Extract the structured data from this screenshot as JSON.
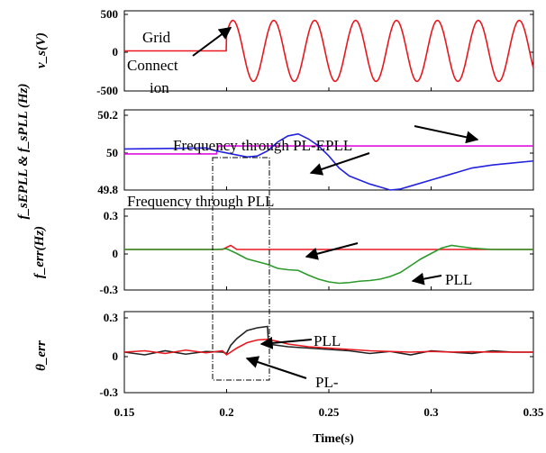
{
  "chart_data": [
    {
      "type": "line",
      "ylabel": "v_s(V)",
      "xlim": [
        0.15,
        0.35
      ],
      "ylim": [
        -500,
        500
      ],
      "yticks": [
        "500",
        "0",
        "-500"
      ],
      "series": [
        {
          "color": "#e8181e",
          "signal": "sinusoid",
          "frequency_hz": 50,
          "amplitude_v": 380,
          "start_s": 0.2,
          "zero_before_start": true
        }
      ],
      "annotations": [
        {
          "text": "Grid",
          "arrow_to": [
            0.202,
            290
          ]
        },
        {
          "text": "Connect",
          "arrow_to": null
        },
        {
          "text": "ion",
          "arrow_to": null
        }
      ]
    },
    {
      "type": "line",
      "ylabel": "f_sEPLL & f_sPLL (Hz)",
      "xlim": [
        0.15,
        0.35
      ],
      "ylim": [
        49.8,
        50.2
      ],
      "yticks": [
        "50.2",
        "50",
        "49.8"
      ],
      "series": [
        {
          "color": "#e011e0",
          "x": [
            0.15,
            0.195,
            0.196,
            0.35
          ],
          "y": [
            49.98,
            49.98,
            50.02,
            50.02
          ]
        },
        {
          "color": "#2222e0",
          "x": [
            0.15,
            0.19,
            0.195,
            0.2,
            0.205,
            0.21,
            0.215,
            0.22,
            0.225,
            0.23,
            0.235,
            0.24,
            0.245,
            0.25,
            0.255,
            0.26,
            0.265,
            0.27,
            0.275,
            0.28,
            0.285,
            0.29,
            0.3,
            0.31,
            0.32,
            0.33,
            0.34,
            0.35
          ],
          "y": [
            50.005,
            50.01,
            49.995,
            49.985,
            49.975,
            49.965,
            49.97,
            49.995,
            50.04,
            50.07,
            50.08,
            50.055,
            50.02,
            49.97,
            49.91,
            49.87,
            49.85,
            49.83,
            49.815,
            49.8,
            49.805,
            49.82,
            49.85,
            49.88,
            49.91,
            49.925,
            49.935,
            49.945
          ]
        }
      ],
      "annotations": [
        {
          "text": "Frequency through PL-EPLL",
          "arrow_to": [
            0.322,
            50.04
          ]
        },
        {
          "text": "Frequency through PLL",
          "arrow_to": [
            0.255,
            49.91
          ]
        }
      ]
    },
    {
      "type": "line",
      "ylabel": "f_err(Hz)",
      "xlim": [
        0.15,
        0.35
      ],
      "ylim": [
        -0.3,
        0.3
      ],
      "yticks": [
        "0.3",
        "0",
        "-0.3"
      ],
      "series": [
        {
          "color": "#e8181e",
          "x": [
            0.15,
            0.198,
            0.2,
            0.202,
            0.205,
            0.35
          ],
          "y": [
            0,
            0,
            0.015,
            0.03,
            0,
            0
          ]
        },
        {
          "color": "#2b9a2b",
          "x": [
            0.15,
            0.195,
            0.2,
            0.205,
            0.21,
            0.215,
            0.22,
            0.225,
            0.23,
            0.235,
            0.24,
            0.245,
            0.25,
            0.255,
            0.26,
            0.265,
            0.27,
            0.275,
            0.28,
            0.285,
            0.29,
            0.295,
            0.3,
            0.305,
            0.31,
            0.315,
            0.32,
            0.33,
            0.34,
            0.35
          ],
          "y": [
            0,
            0,
            0.005,
            -0.03,
            -0.07,
            -0.09,
            -0.11,
            -0.14,
            -0.15,
            -0.155,
            -0.19,
            -0.22,
            -0.24,
            -0.25,
            -0.245,
            -0.235,
            -0.23,
            -0.22,
            -0.2,
            -0.17,
            -0.12,
            -0.07,
            -0.03,
            0.01,
            0.03,
            0.02,
            0.01,
            0,
            0,
            0
          ]
        }
      ],
      "annotations": [
        {
          "text": "PLL",
          "arrow_to": [
            0.298,
            -0.17
          ]
        },
        {
          "text": "",
          "arrow_to": [
            0.25,
            0.0
          ]
        }
      ]
    },
    {
      "type": "line",
      "ylabel": "θ_err",
      "xlabel": "Time(s)",
      "xlim": [
        0.15,
        0.35
      ],
      "ylim": [
        -0.3,
        0.3
      ],
      "yticks": [
        "0.3",
        "0",
        "-0.3"
      ],
      "xticks": [
        "0.15",
        "0.2",
        "0.25",
        "0.3",
        "0.35"
      ],
      "series": [
        {
          "color": "#222222",
          "x": [
            0.15,
            0.16,
            0.17,
            0.18,
            0.19,
            0.198,
            0.2,
            0.202,
            0.205,
            0.21,
            0.215,
            0.22,
            0.2205,
            0.225,
            0.23,
            0.24,
            0.25,
            0.26,
            0.27,
            0.28,
            0.29,
            0.3,
            0.31,
            0.32,
            0.33,
            0.34,
            0.35
          ],
          "y": [
            0,
            -0.02,
            0.01,
            -0.015,
            0.005,
            0,
            -0.01,
            0.05,
            0.1,
            0.16,
            0.18,
            0.19,
            0.06,
            0.05,
            0.04,
            0.03,
            0.02,
            0.01,
            -0.01,
            0.005,
            -0.02,
            0.01,
            0,
            -0.01,
            0.01,
            0,
            0
          ]
        },
        {
          "color": "#e8181e",
          "x": [
            0.15,
            0.16,
            0.17,
            0.18,
            0.19,
            0.198,
            0.2,
            0.205,
            0.21,
            0.215,
            0.22,
            0.225,
            0.23,
            0.24,
            0.25,
            0.26,
            0.27,
            0.28,
            0.29,
            0.3,
            0.31,
            0.32,
            0.33,
            0.34,
            0.35
          ],
          "y": [
            0,
            0.01,
            -0.01,
            0.015,
            -0.005,
            0.01,
            -0.02,
            0.03,
            0.07,
            0.09,
            0.095,
            0.08,
            0.06,
            0.04,
            0.03,
            0.02,
            0.01,
            0.005,
            0,
            0.005,
            0,
            0.003,
            0,
            0,
            0
          ]
        }
      ],
      "annotations": [
        {
          "text": "PLL",
          "arrow_to": [
            0.222,
            0.12
          ]
        },
        {
          "text": "PL-",
          "arrow_to": [
            0.213,
            0.0
          ]
        }
      ]
    }
  ]
}
